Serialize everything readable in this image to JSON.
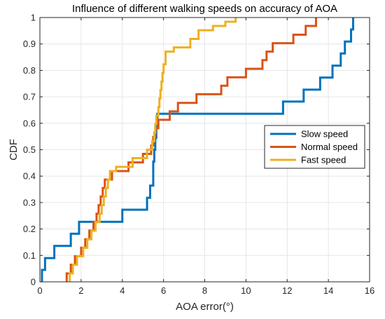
{
  "chart_data": {
    "type": "line",
    "title": "Influence of different walking speeds on accuracy of AOA",
    "xlabel": "AOA error(°)",
    "ylabel": "CDF",
    "xlim": [
      0,
      16
    ],
    "ylim": [
      0,
      1
    ],
    "xticks": [
      0,
      2,
      4,
      6,
      8,
      10,
      12,
      14,
      16
    ],
    "yticks": [
      0,
      0.1,
      0.2,
      0.3,
      0.4,
      0.5,
      0.6,
      0.7,
      0.8,
      0.9,
      1
    ],
    "grid": true,
    "legend_position": "right",
    "series": [
      {
        "name": "Slow speed",
        "color": "#0072BD",
        "step": true,
        "points": [
          [
            0.1,
            0
          ],
          [
            0.1,
            0.045
          ],
          [
            0.25,
            0.045
          ],
          [
            0.25,
            0.09
          ],
          [
            0.7,
            0.09
          ],
          [
            0.7,
            0.136
          ],
          [
            1.5,
            0.136
          ],
          [
            1.5,
            0.182
          ],
          [
            1.9,
            0.182
          ],
          [
            1.9,
            0.227
          ],
          [
            4.0,
            0.227
          ],
          [
            4.0,
            0.273
          ],
          [
            5.2,
            0.273
          ],
          [
            5.2,
            0.318
          ],
          [
            5.35,
            0.318
          ],
          [
            5.35,
            0.364
          ],
          [
            5.5,
            0.364
          ],
          [
            5.5,
            0.455
          ],
          [
            5.55,
            0.455
          ],
          [
            5.55,
            0.5
          ],
          [
            5.6,
            0.5
          ],
          [
            5.6,
            0.545
          ],
          [
            5.65,
            0.545
          ],
          [
            5.65,
            0.591
          ],
          [
            5.7,
            0.591
          ],
          [
            5.7,
            0.636
          ],
          [
            11.8,
            0.636
          ],
          [
            11.8,
            0.682
          ],
          [
            12.8,
            0.682
          ],
          [
            12.8,
            0.727
          ],
          [
            13.6,
            0.727
          ],
          [
            13.6,
            0.773
          ],
          [
            14.2,
            0.773
          ],
          [
            14.2,
            0.818
          ],
          [
            14.6,
            0.818
          ],
          [
            14.6,
            0.864
          ],
          [
            14.8,
            0.864
          ],
          [
            14.8,
            0.909
          ],
          [
            15.1,
            0.909
          ],
          [
            15.1,
            0.955
          ],
          [
            15.2,
            0.955
          ],
          [
            15.2,
            1.0
          ]
        ]
      },
      {
        "name": "Normal speed",
        "color": "#D95319",
        "step": true,
        "points": [
          [
            1.3,
            0
          ],
          [
            1.3,
            0.032
          ],
          [
            1.5,
            0.032
          ],
          [
            1.5,
            0.065
          ],
          [
            1.7,
            0.065
          ],
          [
            1.7,
            0.097
          ],
          [
            2.0,
            0.097
          ],
          [
            2.0,
            0.129
          ],
          [
            2.2,
            0.129
          ],
          [
            2.2,
            0.161
          ],
          [
            2.4,
            0.161
          ],
          [
            2.4,
            0.194
          ],
          [
            2.6,
            0.194
          ],
          [
            2.6,
            0.226
          ],
          [
            2.75,
            0.226
          ],
          [
            2.75,
            0.258
          ],
          [
            2.85,
            0.258
          ],
          [
            2.85,
            0.29
          ],
          [
            2.95,
            0.29
          ],
          [
            2.95,
            0.323
          ],
          [
            3.05,
            0.323
          ],
          [
            3.05,
            0.355
          ],
          [
            3.15,
            0.355
          ],
          [
            3.15,
            0.387
          ],
          [
            3.5,
            0.387
          ],
          [
            3.5,
            0.419
          ],
          [
            4.3,
            0.419
          ],
          [
            4.3,
            0.452
          ],
          [
            5.0,
            0.452
          ],
          [
            5.0,
            0.484
          ],
          [
            5.4,
            0.484
          ],
          [
            5.4,
            0.516
          ],
          [
            5.5,
            0.516
          ],
          [
            5.5,
            0.548
          ],
          [
            5.6,
            0.548
          ],
          [
            5.6,
            0.581
          ],
          [
            5.75,
            0.581
          ],
          [
            5.75,
            0.613
          ],
          [
            6.3,
            0.613
          ],
          [
            6.3,
            0.645
          ],
          [
            6.7,
            0.645
          ],
          [
            6.7,
            0.677
          ],
          [
            7.6,
            0.677
          ],
          [
            7.6,
            0.71
          ],
          [
            8.8,
            0.71
          ],
          [
            8.8,
            0.742
          ],
          [
            9.1,
            0.742
          ],
          [
            9.1,
            0.774
          ],
          [
            10.0,
            0.774
          ],
          [
            10.0,
            0.806
          ],
          [
            10.8,
            0.806
          ],
          [
            10.8,
            0.839
          ],
          [
            11.0,
            0.839
          ],
          [
            11.0,
            0.871
          ],
          [
            11.3,
            0.871
          ],
          [
            11.3,
            0.903
          ],
          [
            12.3,
            0.903
          ],
          [
            12.3,
            0.935
          ],
          [
            12.9,
            0.935
          ],
          [
            12.9,
            0.968
          ],
          [
            13.4,
            0.968
          ],
          [
            13.4,
            1.0
          ]
        ]
      },
      {
        "name": "Fast speed",
        "color": "#EDB120",
        "step": true,
        "points": [
          [
            1.45,
            0
          ],
          [
            1.45,
            0.032
          ],
          [
            1.6,
            0.032
          ],
          [
            1.6,
            0.065
          ],
          [
            1.8,
            0.065
          ],
          [
            1.8,
            0.097
          ],
          [
            2.1,
            0.097
          ],
          [
            2.1,
            0.129
          ],
          [
            2.3,
            0.129
          ],
          [
            2.3,
            0.161
          ],
          [
            2.5,
            0.161
          ],
          [
            2.5,
            0.194
          ],
          [
            2.7,
            0.194
          ],
          [
            2.7,
            0.226
          ],
          [
            2.9,
            0.226
          ],
          [
            2.9,
            0.258
          ],
          [
            3.0,
            0.258
          ],
          [
            3.0,
            0.29
          ],
          [
            3.1,
            0.29
          ],
          [
            3.1,
            0.323
          ],
          [
            3.2,
            0.323
          ],
          [
            3.2,
            0.355
          ],
          [
            3.3,
            0.355
          ],
          [
            3.3,
            0.387
          ],
          [
            3.4,
            0.387
          ],
          [
            3.4,
            0.419
          ],
          [
            3.7,
            0.419
          ],
          [
            3.7,
            0.435
          ],
          [
            4.5,
            0.435
          ],
          [
            4.5,
            0.468
          ],
          [
            5.2,
            0.468
          ],
          [
            5.2,
            0.5
          ],
          [
            5.45,
            0.5
          ],
          [
            5.45,
            0.532
          ],
          [
            5.55,
            0.532
          ],
          [
            5.55,
            0.565
          ],
          [
            5.6,
            0.565
          ],
          [
            5.6,
            0.597
          ],
          [
            5.65,
            0.597
          ],
          [
            5.65,
            0.629
          ],
          [
            5.75,
            0.629
          ],
          [
            5.75,
            0.661
          ],
          [
            5.8,
            0.661
          ],
          [
            5.8,
            0.694
          ],
          [
            5.85,
            0.694
          ],
          [
            5.85,
            0.726
          ],
          [
            5.9,
            0.726
          ],
          [
            5.9,
            0.758
          ],
          [
            5.95,
            0.758
          ],
          [
            5.95,
            0.79
          ],
          [
            6.0,
            0.79
          ],
          [
            6.0,
            0.823
          ],
          [
            6.1,
            0.823
          ],
          [
            6.1,
            0.871
          ],
          [
            6.5,
            0.871
          ],
          [
            6.5,
            0.887
          ],
          [
            7.3,
            0.887
          ],
          [
            7.3,
            0.919
          ],
          [
            7.7,
            0.919
          ],
          [
            7.7,
            0.952
          ],
          [
            8.4,
            0.952
          ],
          [
            8.4,
            0.968
          ],
          [
            9.0,
            0.968
          ],
          [
            9.0,
            0.984
          ],
          [
            9.5,
            0.984
          ],
          [
            9.5,
            1.0
          ]
        ]
      }
    ]
  }
}
